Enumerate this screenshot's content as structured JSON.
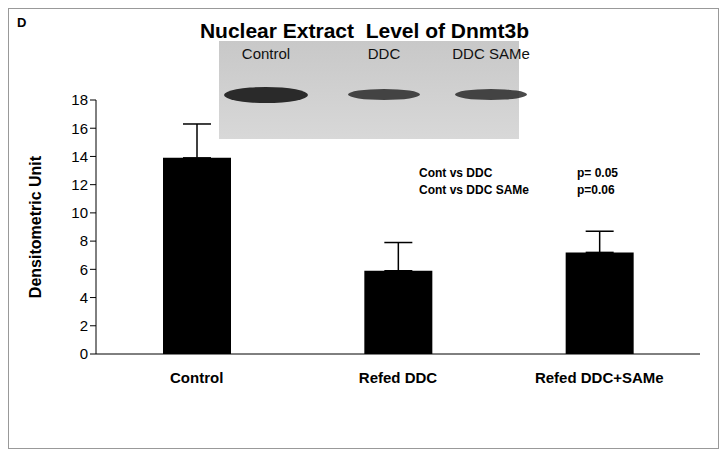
{
  "chart_data": {
    "type": "bar",
    "panel_label": "D",
    "title": "Nuclear Extract  Level of Dnmt3b",
    "y_label": "Densitometric Unit",
    "categories": [
      "Control",
      "Refed DDC",
      "Refed DDC+SAMe"
    ],
    "values": [
      13.9,
      5.9,
      7.2
    ],
    "error": [
      2.4,
      2.0,
      1.5
    ],
    "color": "#000000",
    "ylim": [
      0,
      18
    ],
    "yticks": [
      0,
      2,
      4,
      6,
      8,
      10,
      12,
      14,
      16,
      18
    ],
    "grid": false,
    "annotations": [
      {
        "comparison": "Cont vs DDC",
        "p": "p= 0.05"
      },
      {
        "comparison": "Cont vs DDC SAMe",
        "p": "p=0.06"
      }
    ],
    "inset_labels": [
      "Control",
      "DDC",
      "DDC SAMe"
    ]
  }
}
